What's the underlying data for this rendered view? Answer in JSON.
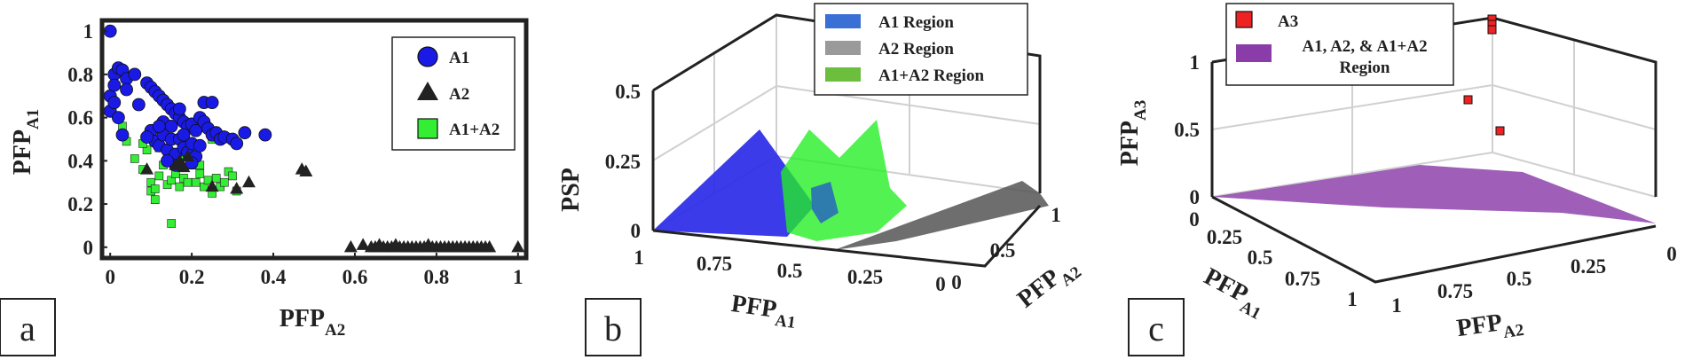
{
  "colors": {
    "a1": "#1a1ae6",
    "a2": "#222222",
    "a12": "#33ee33",
    "a3": "#ee2222",
    "union": "#8a3ca8",
    "a1_region": "#3a6fd6",
    "a2_region": "#9a9a9a",
    "a12_region": "#6bbf3c"
  },
  "chart_data": [
    {
      "type": "scatter",
      "panel_letter": "a",
      "xlabel": "PFP",
      "xlabel_sub": "A2",
      "ylabel": "PFP",
      "ylabel_sub": "A1",
      "xlim": [
        -0.02,
        1.02
      ],
      "ylim": [
        -0.05,
        1.05
      ],
      "xticks": [
        0,
        0.2,
        0.4,
        0.6,
        0.8,
        1
      ],
      "xtick_labels": [
        "0",
        "0.2",
        "0.4",
        "0.6",
        "0.8",
        "1"
      ],
      "yticks": [
        0,
        0.2,
        0.4,
        0.6,
        0.8,
        1
      ],
      "ytick_labels": [
        "0",
        "0.2",
        "0.4",
        "0.6",
        "0.8",
        "1"
      ],
      "legend_position": "top-right",
      "series": [
        {
          "name": "A1+A2",
          "marker": "square",
          "color": "#33ee33",
          "points": [
            [
              0.03,
              0.56
            ],
            [
              0.04,
              0.49
            ],
            [
              0.06,
              0.41
            ],
            [
              0.08,
              0.36
            ],
            [
              0.09,
              0.45
            ],
            [
              0.1,
              0.3
            ],
            [
              0.1,
              0.26
            ],
            [
              0.11,
              0.22
            ],
            [
              0.12,
              0.33
            ],
            [
              0.13,
              0.38
            ],
            [
              0.14,
              0.29
            ],
            [
              0.14,
              0.43
            ],
            [
              0.15,
              0.11
            ],
            [
              0.15,
              0.31
            ],
            [
              0.16,
              0.34
            ],
            [
              0.17,
              0.28
            ],
            [
              0.18,
              0.32
            ],
            [
              0.19,
              0.3
            ],
            [
              0.2,
              0.38
            ],
            [
              0.21,
              0.3
            ],
            [
              0.22,
              0.34
            ],
            [
              0.23,
              0.28
            ],
            [
              0.24,
              0.31
            ],
            [
              0.25,
              0.25
            ],
            [
              0.26,
              0.32
            ],
            [
              0.27,
              0.28
            ],
            [
              0.28,
              0.3
            ],
            [
              0.29,
              0.35
            ],
            [
              0.3,
              0.33
            ],
            [
              0.31,
              0.26
            ],
            [
              0.12,
              0.46
            ],
            [
              0.2,
              0.46
            ],
            [
              0.25,
              0.5
            ],
            [
              0.17,
              0.41
            ],
            [
              0.22,
              0.38
            ],
            [
              0.11,
              0.27
            ],
            [
              0.08,
              0.48
            ]
          ]
        },
        {
          "name": "A1",
          "marker": "circle",
          "color": "#1a1ae6",
          "points": [
            [
              0.0,
              1.0
            ],
            [
              0.0,
              0.7
            ],
            [
              0.0,
              0.63
            ],
            [
              0.01,
              0.8
            ],
            [
              0.01,
              0.75
            ],
            [
              0.01,
              0.67
            ],
            [
              0.02,
              0.83
            ],
            [
              0.02,
              0.6
            ],
            [
              0.03,
              0.82
            ],
            [
              0.04,
              0.78
            ],
            [
              0.04,
              0.73
            ],
            [
              0.03,
              0.52
            ],
            [
              0.06,
              0.8
            ],
            [
              0.07,
              0.66
            ],
            [
              0.09,
              0.76
            ],
            [
              0.1,
              0.74
            ],
            [
              0.11,
              0.72
            ],
            [
              0.12,
              0.7
            ],
            [
              0.13,
              0.68
            ],
            [
              0.14,
              0.66
            ],
            [
              0.15,
              0.64
            ],
            [
              0.16,
              0.62
            ],
            [
              0.17,
              0.6
            ],
            [
              0.18,
              0.58
            ],
            [
              0.19,
              0.56
            ],
            [
              0.2,
              0.57
            ],
            [
              0.21,
              0.54
            ],
            [
              0.22,
              0.6
            ],
            [
              0.23,
              0.58
            ],
            [
              0.24,
              0.55
            ],
            [
              0.25,
              0.52
            ],
            [
              0.26,
              0.53
            ],
            [
              0.27,
              0.5
            ],
            [
              0.28,
              0.51
            ],
            [
              0.3,
              0.5
            ],
            [
              0.31,
              0.48
            ],
            [
              0.33,
              0.53
            ],
            [
              0.38,
              0.52
            ],
            [
              0.23,
              0.67
            ],
            [
              0.25,
              0.67
            ],
            [
              0.17,
              0.64
            ],
            [
              0.1,
              0.54
            ],
            [
              0.11,
              0.49
            ],
            [
              0.12,
              0.47
            ],
            [
              0.13,
              0.52
            ],
            [
              0.14,
              0.45
            ],
            [
              0.15,
              0.5
            ],
            [
              0.16,
              0.43
            ],
            [
              0.17,
              0.5
            ],
            [
              0.18,
              0.46
            ],
            [
              0.19,
              0.44
            ],
            [
              0.2,
              0.48
            ],
            [
              0.21,
              0.42
            ],
            [
              0.22,
              0.47
            ],
            [
              0.13,
              0.58
            ],
            [
              0.15,
              0.56
            ],
            [
              0.18,
              0.52
            ],
            [
              0.12,
              0.56
            ],
            [
              0.09,
              0.51
            ],
            [
              0.16,
              0.38
            ],
            [
              0.2,
              0.39
            ],
            [
              0.14,
              0.4
            ]
          ]
        },
        {
          "name": "A2",
          "marker": "triangle",
          "color": "#222222",
          "points": [
            [
              0.09,
              0.36
            ],
            [
              0.16,
              0.38
            ],
            [
              0.17,
              0.4
            ],
            [
              0.18,
              0.37
            ],
            [
              0.19,
              0.42
            ],
            [
              0.25,
              0.28
            ],
            [
              0.31,
              0.27
            ],
            [
              0.34,
              0.3
            ],
            [
              0.47,
              0.36
            ],
            [
              0.48,
              0.35
            ],
            [
              0.59,
              0.0
            ],
            [
              0.62,
              0.01
            ],
            [
              0.64,
              0.0
            ],
            [
              0.65,
              0.0
            ],
            [
              0.66,
              0.01
            ],
            [
              0.67,
              0.0
            ],
            [
              0.68,
              0.0
            ],
            [
              0.69,
              0.0
            ],
            [
              0.7,
              0.01
            ],
            [
              0.71,
              0.0
            ],
            [
              0.72,
              0.0
            ],
            [
              0.73,
              0.0
            ],
            [
              0.74,
              0.0
            ],
            [
              0.75,
              0.0
            ],
            [
              0.76,
              0.0
            ],
            [
              0.77,
              0.0
            ],
            [
              0.78,
              0.01
            ],
            [
              0.79,
              0.0
            ],
            [
              0.8,
              0.0
            ],
            [
              0.81,
              0.0
            ],
            [
              0.82,
              0.0
            ],
            [
              0.83,
              0.0
            ],
            [
              0.84,
              0.0
            ],
            [
              0.85,
              0.0
            ],
            [
              0.86,
              0.0
            ],
            [
              0.87,
              0.0
            ],
            [
              0.88,
              0.0
            ],
            [
              0.89,
              0.0
            ],
            [
              0.9,
              0.0
            ],
            [
              0.91,
              0.0
            ],
            [
              0.92,
              0.0
            ],
            [
              0.93,
              0.0
            ],
            [
              1.0,
              0.0
            ]
          ]
        }
      ]
    },
    {
      "type": "surface3d",
      "panel_letter": "b",
      "xlabel": "PFP",
      "xlabel_sub": "A1",
      "ylabel": "PFP",
      "ylabel_sub": "A2",
      "zlabel": "PSP",
      "xticks": [
        "1",
        "0.75",
        "0.5",
        "0.25",
        "0"
      ],
      "yticks": [
        "0",
        "0.5",
        "1"
      ],
      "zticks": [
        "0",
        "0.25",
        "0.5"
      ],
      "zlim": [
        0,
        0.5
      ],
      "grid": true,
      "legend_position": "top-center",
      "series": [
        {
          "name": "A1 Region",
          "color": "#3a6fd6"
        },
        {
          "name": "A2 Region",
          "color": "#9a9a9a"
        },
        {
          "name": "A1+A2 Region",
          "color": "#6bbf3c"
        }
      ]
    },
    {
      "type": "surface3d",
      "panel_letter": "c",
      "xlabel": "PFP",
      "xlabel_sub": "A1",
      "ylabel": "PFP",
      "ylabel_sub": "A2",
      "zlabel": "PFP",
      "zlabel_sub": "A3",
      "xticks": [
        "0",
        "0.25",
        "0.5",
        "0.75",
        "1"
      ],
      "yticks": [
        "1",
        "0.75",
        "0.5",
        "0.25",
        "0"
      ],
      "zticks": [
        "0",
        "0.5",
        "1"
      ],
      "zlim": [
        0,
        1
      ],
      "grid": true,
      "legend_position": "top-left",
      "series": [
        {
          "name": "A3",
          "marker": "square",
          "color": "#ee2222"
        },
        {
          "name": "A1, A2, & A1+A2",
          "name_line2": "Region",
          "color": "#8a3ca8"
        }
      ]
    }
  ]
}
